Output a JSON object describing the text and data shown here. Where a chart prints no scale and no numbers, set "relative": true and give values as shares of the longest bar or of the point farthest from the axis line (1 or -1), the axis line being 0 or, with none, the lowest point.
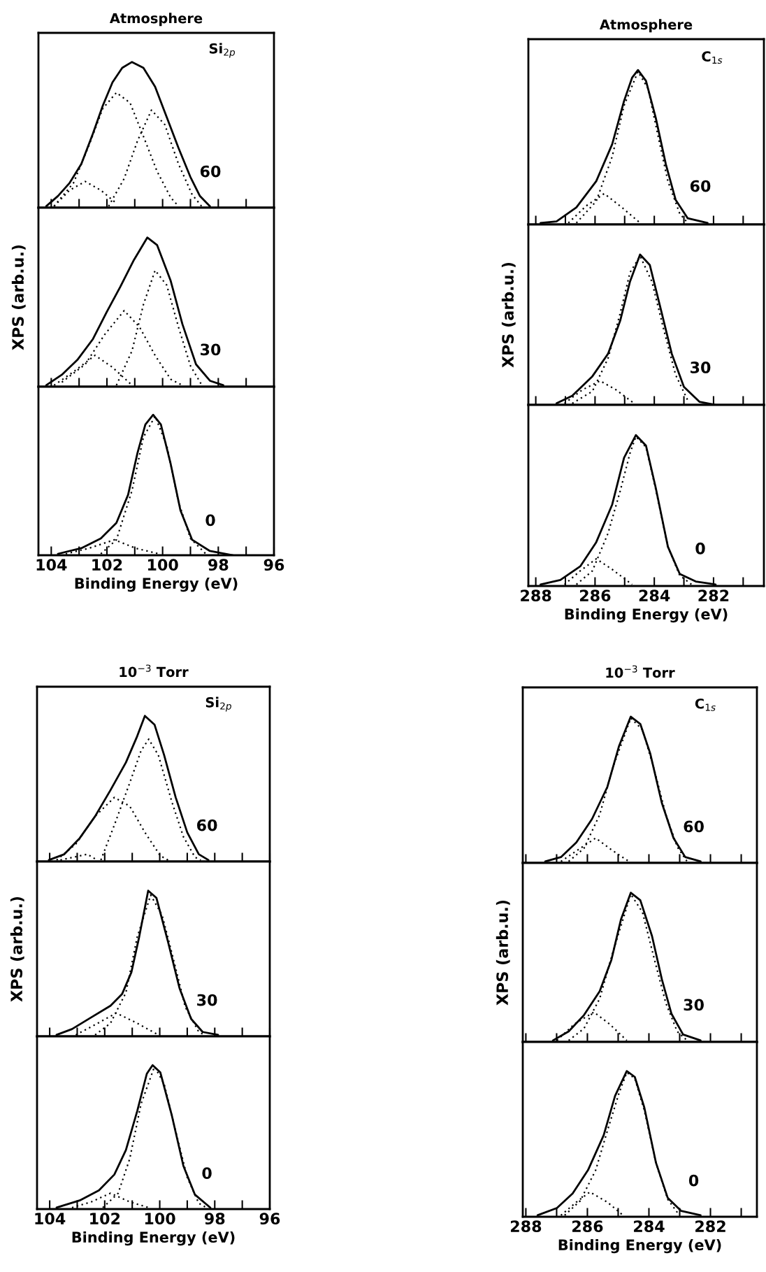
{
  "chart_data": [
    {
      "type": "line",
      "relative": true,
      "title": "Atmosphere",
      "annotations": [
        "Si$_{2p}$",
        "60"
      ],
      "xlim": [
        104.46,
        96
      ],
      "xticks": [
        104,
        {
          "value": 103,
          "label": null
        },
        102,
        {
          "value": 101,
          "label": null
        },
        100,
        {
          "value": 99,
          "label": null
        },
        98,
        {
          "value": 97,
          "label": null
        },
        96
      ],
      "tick_labels": false,
      "series": [
        {
          "color": "#000000",
          "line_style": "solid",
          "x": [
            104.18,
            103.76,
            103.34,
            102.92,
            102.5,
            102.15,
            101.8,
            101.45,
            101.1,
            100.69,
            100.27,
            99.85,
            99.43,
            99.0,
            98.66,
            98.3
          ],
          "values": [
            0.01,
            0.08,
            0.17,
            0.3,
            0.51,
            0.7,
            0.86,
            0.96,
            1,
            0.96,
            0.83,
            0.62,
            0.41,
            0.21,
            0.08,
            0.01
          ]
        },
        {
          "color": "#000000",
          "line_style": "dotted",
          "x": [
            103.9,
            103.2,
            102.64,
            102.15,
            101.66,
            101.17,
            100.69,
            100.2,
            99.71,
            99.43
          ],
          "values": [
            0.01,
            0.17,
            0.43,
            0.68,
            0.79,
            0.72,
            0.49,
            0.25,
            0.07,
            0.01
          ]
        },
        {
          "color": "#000000",
          "line_style": "dotted",
          "x": [
            101.94,
            101.38,
            100.9,
            100.4,
            99.92,
            99.43,
            98.94,
            98.6
          ],
          "values": [
            0.01,
            0.2,
            0.46,
            0.67,
            0.57,
            0.3,
            0.09,
            0.01
          ]
        },
        {
          "color": "#000000",
          "line_style": "dotted",
          "x": [
            103.9,
            103.34,
            102.78,
            102.22,
            101.66
          ],
          "values": [
            0.01,
            0.12,
            0.18,
            0.12,
            0.03
          ]
        }
      ]
    },
    {
      "type": "line",
      "relative": true,
      "ylabel": "XPS (arb.u.)",
      "annotations": [
        "30"
      ],
      "xlim": [
        104.46,
        96
      ],
      "xticks": [
        104,
        {
          "value": 103,
          "label": null
        },
        102,
        {
          "value": 101,
          "label": null
        },
        100,
        {
          "value": 99,
          "label": null
        },
        98,
        {
          "value": 97,
          "label": null
        },
        96
      ],
      "tick_labels": false,
      "series": [
        {
          "color": "#000000",
          "line_style": "solid",
          "x": [
            104.18,
            103.62,
            103.06,
            102.5,
            102.01,
            101.52,
            101.03,
            100.55,
            100.2,
            99.71,
            99.29,
            98.8,
            98.3,
            97.82
          ],
          "values": [
            0.01,
            0.08,
            0.18,
            0.32,
            0.5,
            0.67,
            0.85,
            1.0,
            0.95,
            0.71,
            0.42,
            0.15,
            0.04,
            0.01
          ]
        },
        {
          "color": "#000000",
          "line_style": "dotted",
          "x": [
            103.62,
            102.78,
            102.08,
            101.38,
            100.83,
            100.27,
            99.71,
            99.29
          ],
          "values": [
            0.03,
            0.15,
            0.35,
            0.51,
            0.4,
            0.21,
            0.05,
            0.01
          ]
        },
        {
          "color": "#000000",
          "line_style": "dotted",
          "x": [
            101.66,
            101.1,
            100.69,
            100.27,
            99.85,
            99.43,
            99.0,
            98.59
          ],
          "values": [
            0.01,
            0.24,
            0.55,
            0.78,
            0.68,
            0.4,
            0.14,
            0.01
          ]
        },
        {
          "color": "#000000",
          "line_style": "dotted",
          "x": [
            103.9,
            103.2,
            102.43,
            101.8,
            101.1
          ],
          "values": [
            0.01,
            0.1,
            0.21,
            0.13,
            0.01
          ]
        }
      ]
    },
    {
      "type": "line",
      "relative": true,
      "xlabel": "Binding Energy (eV)",
      "annotations": [
        "0"
      ],
      "xlim": [
        104.46,
        96
      ],
      "xticks": [
        104,
        {
          "value": 103,
          "label": null
        },
        102,
        {
          "value": 101,
          "label": null
        },
        100,
        {
          "value": 99,
          "label": null
        },
        98,
        {
          "value": 97,
          "label": null
        },
        96
      ],
      "tick_labels": "x",
      "series": [
        {
          "color": "#000000",
          "line_style": "solid",
          "x": [
            103.76,
            102.92,
            102.22,
            101.66,
            101.24,
            100.9,
            100.62,
            100.34,
            100.06,
            99.71,
            99.36,
            98.94,
            98.3,
            97.47
          ],
          "values": [
            0.01,
            0.05,
            0.12,
            0.23,
            0.43,
            0.73,
            0.93,
            1.0,
            0.93,
            0.65,
            0.32,
            0.11,
            0.03,
            0.0
          ]
        },
        {
          "color": "#000000",
          "line_style": "dotted",
          "x": [
            102.22,
            101.66,
            101.1,
            100.69,
            100.27,
            99.85,
            99.43,
            99.0,
            98.45
          ],
          "values": [
            0.01,
            0.11,
            0.46,
            0.84,
            0.99,
            0.78,
            0.38,
            0.12,
            0.01
          ]
        },
        {
          "color": "#000000",
          "line_style": "dotted",
          "x": [
            103.48,
            102.64,
            101.73,
            100.97,
            100.13
          ],
          "values": [
            0.01,
            0.05,
            0.11,
            0.05,
            0.01
          ]
        }
      ]
    },
    {
      "type": "line",
      "relative": true,
      "title": "Atmosphere",
      "annotations": [
        "C$_{1s}$",
        "60"
      ],
      "xlim": [
        288.25,
        280.3
      ],
      "xticks": [
        288,
        {
          "value": 287,
          "label": null
        },
        286,
        {
          "value": 285,
          "label": null
        },
        284,
        {
          "value": 283,
          "label": null
        },
        282,
        {
          "value": 281,
          "label": null
        }
      ],
      "tick_labels": false,
      "series": [
        {
          "color": "#000000",
          "line_style": "solid",
          "x": [
            287.84,
            287.3,
            286.63,
            285.96,
            285.42,
            285.02,
            284.75,
            284.55,
            284.28,
            283.95,
            283.61,
            283.28,
            282.87,
            282.2
          ],
          "values": [
            0.01,
            0.02,
            0.11,
            0.28,
            0.52,
            0.8,
            0.95,
            1.0,
            0.93,
            0.69,
            0.39,
            0.16,
            0.04,
            0.01
          ]
        },
        {
          "color": "#000000",
          "line_style": "dotted",
          "x": [
            286.63,
            285.96,
            285.42,
            285.02,
            284.55,
            284.21,
            283.88,
            283.54,
            283.14,
            282.87
          ],
          "values": [
            0.01,
            0.15,
            0.44,
            0.77,
            0.99,
            0.88,
            0.58,
            0.28,
            0.07,
            0.01
          ]
        },
        {
          "color": "#000000",
          "line_style": "dotted",
          "x": [
            286.9,
            286.3,
            285.69,
            285.09,
            284.48
          ],
          "values": [
            0.01,
            0.12,
            0.2,
            0.11,
            0.01
          ]
        }
      ]
    },
    {
      "type": "line",
      "relative": true,
      "ylabel": "XPS (arb.u.)",
      "annotations": [
        "30"
      ],
      "xlim": [
        288.25,
        280.3
      ],
      "xticks": [
        288,
        {
          "value": 287,
          "label": null
        },
        286,
        {
          "value": 285,
          "label": null
        },
        284,
        {
          "value": 283,
          "label": null
        },
        282,
        {
          "value": 281,
          "label": null
        }
      ],
      "tick_labels": false,
      "series": [
        {
          "color": "#000000",
          "line_style": "solid",
          "x": [
            287.3,
            286.77,
            286.09,
            285.56,
            285.15,
            284.82,
            284.48,
            284.15,
            283.81,
            283.41,
            283.0,
            282.47,
            281.93
          ],
          "values": [
            0.01,
            0.06,
            0.19,
            0.34,
            0.56,
            0.82,
            1.0,
            0.93,
            0.66,
            0.34,
            0.12,
            0.02,
            0.0
          ]
        },
        {
          "color": "#000000",
          "line_style": "dotted",
          "x": [
            286.77,
            286.09,
            285.56,
            285.15,
            284.82,
            284.48,
            284.08,
            283.68,
            283.28,
            282.87
          ],
          "values": [
            0.01,
            0.09,
            0.31,
            0.61,
            0.88,
            0.99,
            0.82,
            0.5,
            0.2,
            0.03
          ]
        },
        {
          "color": "#000000",
          "line_style": "dotted",
          "x": [
            287.03,
            286.43,
            285.83,
            285.29,
            284.68
          ],
          "values": [
            0.01,
            0.1,
            0.16,
            0.1,
            0.01
          ]
        }
      ]
    },
    {
      "type": "line",
      "relative": true,
      "xlabel": "Binding Energy (eV)",
      "annotations": [
        "0"
      ],
      "xlim": [
        288.25,
        280.3
      ],
      "xticks": [
        288,
        {
          "value": 287,
          "label": null
        },
        286,
        {
          "value": 285,
          "label": null
        },
        284,
        {
          "value": 283,
          "label": null
        },
        282,
        {
          "value": 281,
          "label": null
        }
      ],
      "tick_labels": "x",
      "series": [
        {
          "color": "#000000",
          "line_style": "solid",
          "x": [
            287.84,
            287.17,
            286.5,
            285.96,
            285.42,
            285.02,
            284.62,
            284.28,
            283.95,
            283.54,
            283.14,
            282.6,
            281.93
          ],
          "values": [
            0.01,
            0.04,
            0.13,
            0.29,
            0.54,
            0.85,
            1.0,
            0.93,
            0.65,
            0.26,
            0.08,
            0.03,
            0.01
          ]
        },
        {
          "color": "#000000",
          "line_style": "dotted",
          "x": [
            286.63,
            286.09,
            285.56,
            285.15,
            284.82,
            284.62,
            284.28,
            283.95,
            283.54,
            283.14,
            282.74
          ],
          "values": [
            0.01,
            0.1,
            0.35,
            0.63,
            0.88,
            0.99,
            0.92,
            0.64,
            0.26,
            0.07,
            0.01
          ]
        },
        {
          "color": "#000000",
          "line_style": "dotted",
          "x": [
            287.03,
            286.5,
            285.96,
            285.42,
            284.75
          ],
          "values": [
            0.01,
            0.1,
            0.18,
            0.11,
            0.01
          ]
        }
      ]
    },
    {
      "type": "line",
      "relative": true,
      "title": "10$^{−3}$ Torr",
      "annotations": [
        "Si$_{2p}$",
        "60"
      ],
      "xlim": [
        104.46,
        96
      ],
      "xticks": [
        104,
        {
          "value": 103,
          "label": null
        },
        102,
        {
          "value": 101,
          "label": null
        },
        100,
        {
          "value": 99,
          "label": null
        },
        98,
        {
          "value": 97,
          "label": null
        },
        96
      ],
      "tick_labels": false,
      "series": [
        {
          "color": "#000000",
          "line_style": "solid",
          "x": [
            104.03,
            103.47,
            102.91,
            102.35,
            101.79,
            101.23,
            100.82,
            100.54,
            100.19,
            99.84,
            99.42,
            99.0,
            98.58,
            98.23
          ],
          "values": [
            0.01,
            0.05,
            0.16,
            0.31,
            0.49,
            0.68,
            0.86,
            1.0,
            0.94,
            0.73,
            0.44,
            0.2,
            0.05,
            0.01
          ]
        },
        {
          "color": "#000000",
          "line_style": "dotted",
          "x": [
            103.75,
            103.05,
            102.35,
            101.65,
            101.09,
            100.54,
            99.98,
            99.7
          ],
          "values": [
            0.01,
            0.12,
            0.31,
            0.44,
            0.38,
            0.2,
            0.04,
            0.01
          ]
        },
        {
          "color": "#000000",
          "line_style": "dotted",
          "x": [
            102.14,
            101.65,
            101.09,
            100.68,
            100.4,
            100.05,
            99.56,
            99.14,
            98.72,
            98.51
          ],
          "values": [
            0.01,
            0.25,
            0.54,
            0.76,
            0.84,
            0.73,
            0.41,
            0.17,
            0.03,
            0.01
          ]
        },
        {
          "color": "#000000",
          "line_style": "dotted",
          "x": [
            103.61,
            102.63,
            102.28
          ],
          "values": [
            0.01,
            0.05,
            0.01
          ]
        }
      ]
    },
    {
      "type": "line",
      "relative": true,
      "ylabel": "XPS (arb.u.)",
      "annotations": [
        "30"
      ],
      "xlim": [
        104.46,
        96
      ],
      "xticks": [
        104,
        {
          "value": 103,
          "label": null
        },
        102,
        {
          "value": 101,
          "label": null
        },
        100,
        {
          "value": 99,
          "label": null
        },
        98,
        {
          "value": 97,
          "label": null
        },
        96
      ],
      "tick_labels": false,
      "series": [
        {
          "color": "#000000",
          "line_style": "solid",
          "x": [
            103.75,
            103.19,
            102.49,
            101.79,
            101.37,
            101.03,
            100.75,
            100.42,
            100.12,
            99.7,
            99.28,
            98.86,
            98.44,
            97.88
          ],
          "values": [
            0.01,
            0.05,
            0.13,
            0.21,
            0.29,
            0.44,
            0.68,
            1.0,
            0.95,
            0.65,
            0.33,
            0.12,
            0.03,
            0.01
          ]
        },
        {
          "color": "#000000",
          "line_style": "dotted",
          "x": [
            102.35,
            101.79,
            101.23,
            100.82,
            100.33,
            99.91,
            99.49,
            99.07,
            98.58,
            98.37
          ],
          "values": [
            0.01,
            0.09,
            0.3,
            0.68,
            0.97,
            0.83,
            0.52,
            0.2,
            0.03,
            0.01
          ]
        },
        {
          "color": "#000000",
          "line_style": "dotted",
          "x": [
            103.05,
            102.35,
            101.58,
            100.82,
            100.05
          ],
          "values": [
            0.01,
            0.08,
            0.16,
            0.09,
            0.01
          ]
        }
      ]
    },
    {
      "type": "line",
      "relative": true,
      "xlabel": "Binding Energy (eV)",
      "annotations": [
        "0"
      ],
      "xlim": [
        104.46,
        96
      ],
      "xticks": [
        104,
        {
          "value": 103,
          "label": null
        },
        102,
        {
          "value": 101,
          "label": null
        },
        100,
        {
          "value": 99,
          "label": null
        },
        98,
        {
          "value": 97,
          "label": null
        },
        96
      ],
      "tick_labels": "x",
      "series": [
        {
          "color": "#000000",
          "line_style": "solid",
          "x": [
            103.75,
            102.91,
            102.21,
            101.65,
            101.23,
            100.82,
            100.47,
            100.26,
            99.98,
            99.56,
            99.14,
            98.72,
            98.16
          ],
          "values": [
            0.01,
            0.06,
            0.13,
            0.24,
            0.41,
            0.68,
            0.94,
            1.0,
            0.95,
            0.65,
            0.3,
            0.1,
            0.01
          ]
        },
        {
          "color": "#000000",
          "line_style": "dotted",
          "x": [
            102.07,
            101.51,
            101.09,
            100.68,
            100.19,
            99.84,
            99.42,
            99.0,
            98.58,
            98.3
          ],
          "values": [
            0.01,
            0.11,
            0.35,
            0.73,
            0.99,
            0.87,
            0.54,
            0.22,
            0.04,
            0.01
          ]
        },
        {
          "color": "#000000",
          "line_style": "dotted",
          "x": [
            103.19,
            102.49,
            101.79,
            101.09,
            100.4
          ],
          "values": [
            0.01,
            0.05,
            0.11,
            0.05,
            0.01
          ]
        }
      ]
    },
    {
      "type": "line",
      "relative": true,
      "title": "10$^{−3}$ Torr",
      "annotations": [
        "C$_{1s}$",
        "60"
      ],
      "xlim": [
        288.1,
        280.49
      ],
      "xticks": [
        288,
        {
          "value": 287,
          "label": null
        },
        286,
        {
          "value": 285,
          "label": null
        },
        284,
        {
          "value": 283,
          "label": null
        },
        282,
        {
          "value": 281,
          "label": null
        }
      ],
      "tick_labels": false,
      "series": [
        {
          "color": "#000000",
          "line_style": "solid",
          "x": [
            287.37,
            286.86,
            286.36,
            285.85,
            285.35,
            284.97,
            284.59,
            284.28,
            283.96,
            283.58,
            283.2,
            282.82,
            282.32
          ],
          "values": [
            0.01,
            0.04,
            0.14,
            0.3,
            0.52,
            0.8,
            1.0,
            0.95,
            0.75,
            0.41,
            0.17,
            0.04,
            0.01
          ]
        },
        {
          "color": "#000000",
          "line_style": "dotted",
          "x": [
            286.61,
            286.11,
            285.6,
            285.16,
            284.59,
            284.21,
            283.83,
            283.45,
            283.08,
            282.76
          ],
          "values": [
            0.01,
            0.1,
            0.33,
            0.66,
            0.99,
            0.91,
            0.64,
            0.33,
            0.11,
            0.01
          ]
        },
        {
          "color": "#000000",
          "line_style": "dotted",
          "x": [
            286.86,
            286.3,
            285.73,
            285.22,
            284.65
          ],
          "values": [
            0.01,
            0.09,
            0.17,
            0.09,
            0.01
          ]
        }
      ]
    },
    {
      "type": "line",
      "relative": true,
      "ylabel": "XPS (arb.u.)",
      "annotations": [
        "30"
      ],
      "xlim": [
        288.1,
        280.49
      ],
      "xticks": [
        288,
        {
          "value": 287,
          "label": null
        },
        286,
        {
          "value": 285,
          "label": null
        },
        284,
        {
          "value": 283,
          "label": null
        },
        282,
        {
          "value": 281,
          "label": null
        }
      ],
      "tick_labels": false,
      "series": [
        {
          "color": "#000000",
          "line_style": "solid",
          "x": [
            287.12,
            286.61,
            286.11,
            285.6,
            285.22,
            284.91,
            284.59,
            284.28,
            283.9,
            283.58,
            283.27,
            282.89,
            282.32
          ],
          "values": [
            0.01,
            0.07,
            0.18,
            0.34,
            0.55,
            0.82,
            1.0,
            0.95,
            0.71,
            0.42,
            0.19,
            0.05,
            0.01
          ]
        },
        {
          "color": "#000000",
          "line_style": "dotted",
          "x": [
            286.61,
            286.11,
            285.6,
            285.16,
            284.59,
            284.21,
            283.83,
            283.45,
            283.08,
            282.76
          ],
          "values": [
            0.01,
            0.09,
            0.29,
            0.61,
            0.99,
            0.87,
            0.56,
            0.26,
            0.07,
            0.01
          ]
        },
        {
          "color": "#000000",
          "line_style": "dotted",
          "x": [
            286.99,
            286.42,
            285.79,
            285.28,
            284.72
          ],
          "values": [
            0.01,
            0.12,
            0.2,
            0.12,
            0.01
          ]
        }
      ]
    },
    {
      "type": "line",
      "relative": true,
      "xlabel": "Binding Energy (eV)",
      "annotations": [
        "0"
      ],
      "xlim": [
        288.1,
        280.49
      ],
      "xticks": [
        288,
        {
          "value": 287,
          "label": null
        },
        286,
        {
          "value": 285,
          "label": null
        },
        284,
        {
          "value": 283,
          "label": null
        },
        282,
        {
          "value": 281,
          "label": null
        }
      ],
      "tick_labels": "x",
      "series": [
        {
          "color": "#000000",
          "line_style": "solid",
          "x": [
            287.62,
            286.99,
            286.48,
            285.98,
            285.47,
            285.1,
            284.72,
            284.46,
            284.15,
            283.77,
            283.39,
            282.95,
            282.32
          ],
          "values": [
            0.01,
            0.06,
            0.16,
            0.32,
            0.56,
            0.83,
            1.0,
            0.96,
            0.75,
            0.37,
            0.13,
            0.04,
            0.01
          ]
        },
        {
          "color": "#000000",
          "line_style": "dotted",
          "x": [
            286.74,
            286.23,
            285.73,
            285.35,
            284.97,
            284.72,
            284.46,
            284.15,
            283.77,
            283.39,
            283.01
          ],
          "values": [
            0.01,
            0.11,
            0.32,
            0.59,
            0.85,
            0.99,
            0.95,
            0.73,
            0.37,
            0.12,
            0.01
          ]
        },
        {
          "color": "#000000",
          "line_style": "dotted",
          "x": [
            286.86,
            286.36,
            285.92,
            285.35,
            284.84
          ],
          "values": [
            0.01,
            0.1,
            0.17,
            0.1,
            0.01
          ]
        }
      ]
    }
  ]
}
